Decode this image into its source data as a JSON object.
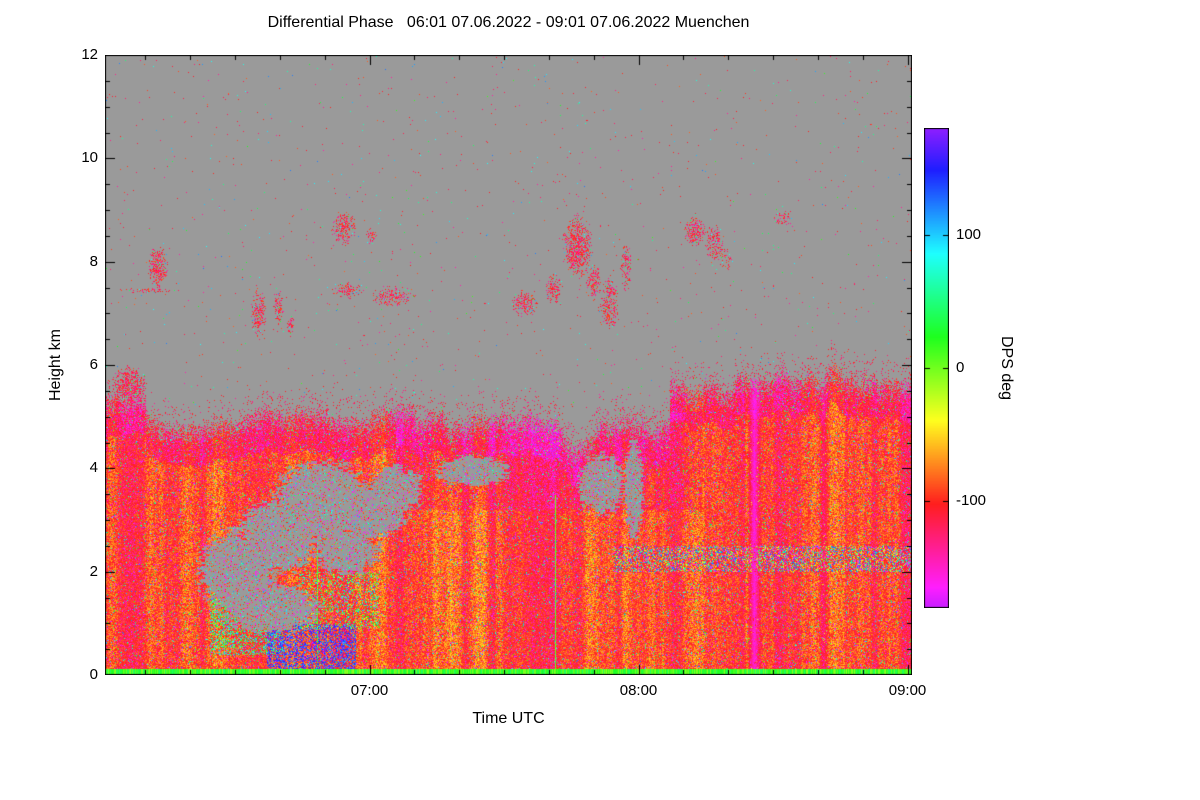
{
  "chart_data": {
    "type": "heatmap",
    "title": "Differential Phase   06:01 07.06.2022 - 09:01 07.06.2022 Muenchen",
    "xlabel": "Time UTC",
    "ylabel": "Height km",
    "station": "Muenchen",
    "time_start": "06:01 07.06.2022",
    "time_end": "09:01 07.06.2022",
    "x_axis": {
      "total_minutes": 180,
      "major_ticks": [
        {
          "minute": 59,
          "label": "07:00"
        },
        {
          "minute": 119,
          "label": "08:00"
        },
        {
          "minute": 179,
          "label": "09:00"
        }
      ],
      "minor_tick_every_minutes": 10
    },
    "y_axis": {
      "range_km": [
        0,
        12
      ],
      "major_ticks": [
        0,
        2,
        4,
        6,
        8,
        10,
        12
      ],
      "minor_step_km": 0.5
    },
    "colorbar": {
      "label": "DPS deg",
      "range_deg": [
        -180,
        180
      ],
      "ticks": [
        {
          "value": 100,
          "label": "100"
        },
        {
          "value": 0,
          "label": "0"
        },
        {
          "value": -100,
          "label": "-100"
        }
      ]
    },
    "background_color": "#9a9a9a",
    "description": "Radar differential phase (DPS) time-height plot. Dense precipitation echo (mostly -60 to -140 deg: orange/red/magenta) fills 0 to ~5 km, echo top rising to ~6 km after 08:10. Gray = no data. Scattered magenta/pink cloud echoes between 6.5 and 9 km. Bright yellow-green ground return line at 0 km. Deep purple vertical streak near 08:25, weaker one near 08:41. Speckled mixed band near 2.2 km after ~07:55. Gray gaps with colored speckles inside the echo around 06:25-07:00 between 1 and 4 km.",
    "render_params": {
      "plot_bg_rgb": [
        154,
        154,
        154
      ],
      "echo": {
        "base_value_deg": -92,
        "top_base_km": 4.85,
        "top_rise_from_frac": 0.7,
        "top_rise_km": 0.75,
        "dip": {
          "f0": 0.555,
          "f1": 0.615,
          "depth_km": 0.5
        },
        "ground_line_km": 0.12,
        "ground_value_deg": [
          -10,
          45
        ]
      },
      "cloud_patches": [
        [
          0.03,
          5.62,
          0.022,
          0.4,
          0.85
        ],
        [
          0.015,
          5.2,
          0.012,
          0.25,
          0.7
        ],
        [
          0.065,
          7.9,
          0.013,
          0.45,
          0.75
        ],
        [
          0.05,
          7.45,
          0.045,
          0.05,
          0.35
        ],
        [
          0.19,
          7.0,
          0.01,
          0.5,
          0.7
        ],
        [
          0.215,
          7.1,
          0.007,
          0.35,
          0.6
        ],
        [
          0.23,
          6.75,
          0.006,
          0.2,
          0.5
        ],
        [
          0.295,
          8.65,
          0.016,
          0.35,
          0.65
        ],
        [
          0.3,
          7.45,
          0.02,
          0.18,
          0.45
        ],
        [
          0.355,
          7.35,
          0.028,
          0.22,
          0.5
        ],
        [
          0.33,
          8.5,
          0.008,
          0.2,
          0.35
        ],
        [
          0.52,
          7.2,
          0.018,
          0.28,
          0.55
        ],
        [
          0.555,
          7.5,
          0.012,
          0.35,
          0.5
        ],
        [
          0.585,
          8.3,
          0.02,
          0.65,
          0.8
        ],
        [
          0.605,
          7.6,
          0.01,
          0.4,
          0.6
        ],
        [
          0.625,
          7.2,
          0.012,
          0.55,
          0.65
        ],
        [
          0.645,
          7.9,
          0.007,
          0.5,
          0.5
        ],
        [
          0.73,
          8.6,
          0.014,
          0.3,
          0.75
        ],
        [
          0.755,
          8.35,
          0.012,
          0.4,
          0.6
        ],
        [
          0.77,
          8.05,
          0.008,
          0.25,
          0.4
        ],
        [
          0.84,
          8.85,
          0.012,
          0.18,
          0.4
        ]
      ],
      "gray_holes": [
        [
          0.165,
          2.0,
          0.05,
          0.85
        ],
        [
          0.215,
          2.7,
          0.05,
          0.75
        ],
        [
          0.27,
          3.35,
          0.065,
          0.8
        ],
        [
          0.205,
          1.3,
          0.06,
          0.5
        ],
        [
          0.325,
          3.15,
          0.05,
          0.55
        ],
        [
          0.3,
          2.4,
          0.04,
          0.45
        ],
        [
          0.36,
          3.6,
          0.035,
          0.45
        ],
        [
          0.455,
          3.95,
          0.045,
          0.3
        ],
        [
          0.615,
          3.7,
          0.03,
          0.6
        ],
        [
          0.655,
          3.6,
          0.012,
          1.0
        ]
      ],
      "purple_streaks": [
        {
          "center": 0.804,
          "halfw": 0.0095,
          "strength": 0.8,
          "value": -172
        },
        {
          "center": 0.8905,
          "halfw": 0.0065,
          "strength": 0.5,
          "value": -150
        }
      ],
      "speckle_zones": [
        {
          "f": [
            0.13,
            0.22
          ],
          "km": [
            0.4,
            1.6
          ],
          "p": 0.35,
          "v": [
            0,
            120
          ],
          "seed": 3
        },
        {
          "f": [
            0.2,
            0.31
          ],
          "km": [
            0.0,
            1.0
          ],
          "p": 0.45,
          "v": [
            100,
            190
          ],
          "seed": 5
        },
        {
          "f": [
            0.24,
            0.34
          ],
          "km": [
            0.9,
            2.0
          ],
          "p": 0.22,
          "v": [
            -40,
            120
          ],
          "seed": 9
        }
      ],
      "mixed_band": {
        "km": [
          2.0,
          2.5
        ],
        "f_min": 0.63
      },
      "upper_speckle_prob": 0.0045
    }
  }
}
